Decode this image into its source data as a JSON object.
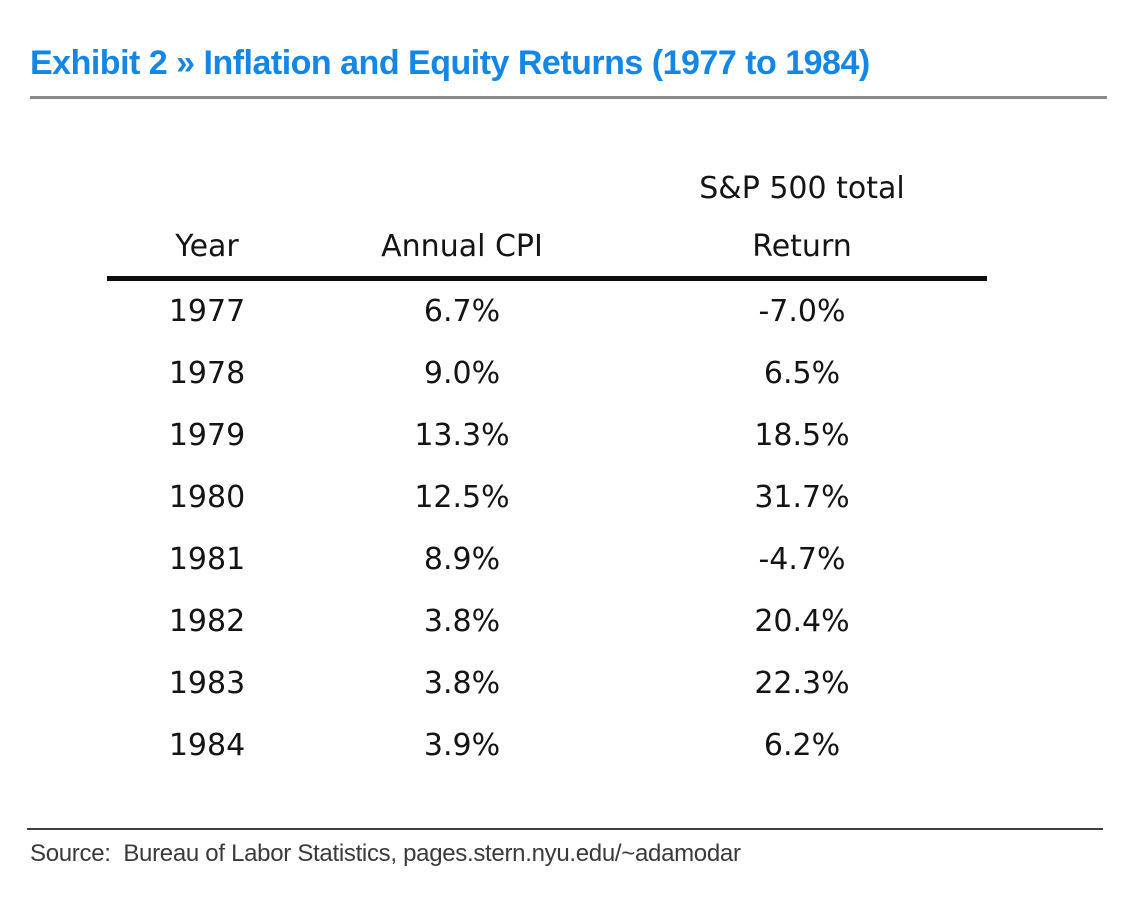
{
  "colors": {
    "accent_blue": "#1487e6",
    "title_rule_gray": "#8a8a8a",
    "table_header_rule_black": "#0d0d0d",
    "bottom_rule_gray": "#3f3f3f",
    "table_text_black": "#141414",
    "source_text_gray": "#3a3a3a",
    "background": "#ffffff"
  },
  "header": {
    "title": "Exhibit 2 » Inflation and Equity Returns (1977 to 1984)"
  },
  "table": {
    "column_headers": {
      "col1": "Year",
      "col2": "Annual CPI",
      "col3_line1": "S&P 500 total",
      "col3_line2": "Return"
    },
    "rows": [
      [
        "1977",
        "6.7%",
        "-7.0%"
      ],
      [
        "1978",
        "9.0%",
        "6.5%"
      ],
      [
        "1979",
        "13.3%",
        "18.5%"
      ],
      [
        "1980",
        "12.5%",
        "31.7%"
      ],
      [
        "1981",
        "8.9%",
        "-4.7%"
      ],
      [
        "1982",
        "3.8%",
        "20.4%"
      ],
      [
        "1983",
        "3.8%",
        "22.3%"
      ],
      [
        "1984",
        "3.9%",
        "6.2%"
      ]
    ]
  },
  "chart_data": {
    "type": "table",
    "title": "Exhibit 2 » Inflation and Equity Returns (1977 to 1984)",
    "columns": [
      "Year",
      "Annual CPI",
      "S&P 500 total Return"
    ],
    "categories": [
      1977,
      1978,
      1979,
      1980,
      1981,
      1982,
      1983,
      1984
    ],
    "series": [
      {
        "name": "Annual CPI (%)",
        "values": [
          6.7,
          9.0,
          13.3,
          12.5,
          8.9,
          3.8,
          3.8,
          3.9
        ]
      },
      {
        "name": "S&P 500 total Return (%)",
        "values": [
          -7.0,
          6.5,
          18.5,
          31.7,
          -4.7,
          20.4,
          22.3,
          6.2
        ]
      }
    ]
  },
  "footer": {
    "source": "Source:  Bureau of Labor Statistics, pages.stern.nyu.edu/~adamodar"
  }
}
